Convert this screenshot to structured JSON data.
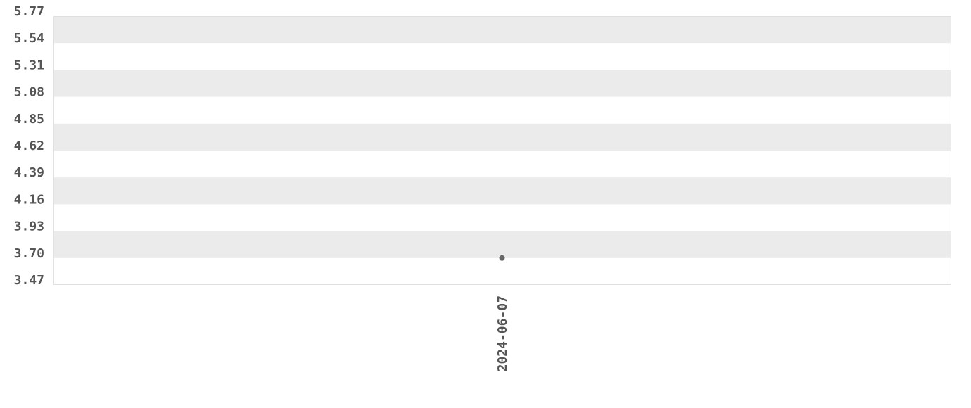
{
  "chart_data": {
    "type": "scatter",
    "title": "",
    "xlabel": "",
    "ylabel": "",
    "ylim": [
      3.47,
      5.77
    ],
    "yticks": [
      "3.47",
      "3.70",
      "3.93",
      "4.16",
      "4.39",
      "4.62",
      "4.85",
      "5.08",
      "5.31",
      "5.54",
      "5.77"
    ],
    "xticks": [
      "2024-06-07"
    ],
    "points": [
      {
        "x": "2024-06-07",
        "y": 3.7
      }
    ],
    "grid": "alternating horizontal bands",
    "colors": {
      "band": "#ebebeb",
      "point": "#666666",
      "text": "#555555",
      "border": "#e0e0e0"
    }
  }
}
